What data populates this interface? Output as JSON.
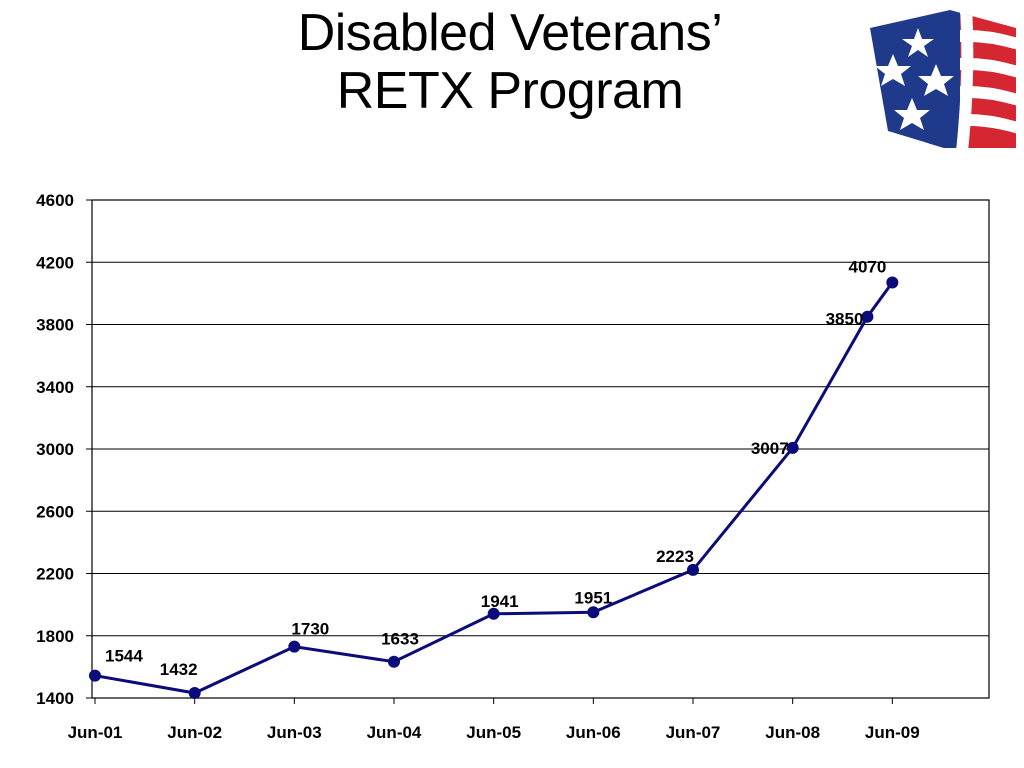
{
  "header": {
    "title_line1": "Disabled Veterans’",
    "title_line2": "RETX Program"
  },
  "logo": {
    "icon": "flag-stars-stripes-icon",
    "colors": {
      "blue": "#1f3a8a",
      "red": "#d62631",
      "white": "#ffffff"
    }
  },
  "chart_data": {
    "type": "line",
    "categories": [
      "Jun-01",
      "Jun-02",
      "Jun-03",
      "Jun-04",
      "Jun-05",
      "Jun-06",
      "Jun-07",
      "Jun-08",
      "Jun-09"
    ],
    "x": [
      0,
      1,
      2,
      3,
      4,
      5,
      6,
      7,
      7.75,
      8
    ],
    "values": [
      1544,
      1432,
      1730,
      1633,
      1941,
      1951,
      2223,
      3007,
      3850,
      4070
    ],
    "data_labels": [
      "1544",
      "1432",
      "1730",
      "1633",
      "1941",
      "1951",
      "2223",
      "3007",
      "3850",
      "4070"
    ],
    "ylim": [
      1400,
      4600
    ],
    "yticks": [
      1400,
      1800,
      2200,
      2600,
      3000,
      3400,
      3800,
      4200,
      4600
    ],
    "grid": true,
    "line_color": "#0b0b7a",
    "title": "",
    "xlabel": "",
    "ylabel": ""
  }
}
